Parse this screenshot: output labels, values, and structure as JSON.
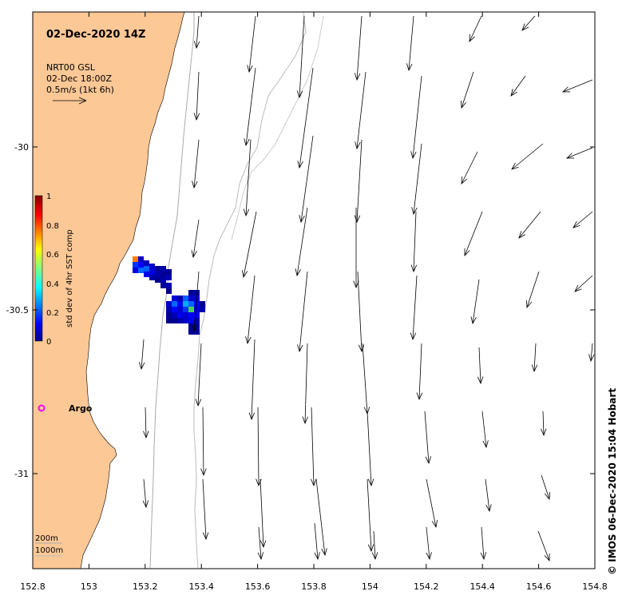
{
  "title": "02-Dec-2020 14Z",
  "current_info": {
    "line1": "NRT00 GSL",
    "line2": "02-Dec 18:00Z",
    "line3": "0.5m/s (1kt 6h)"
  },
  "colorbar": {
    "label": "std dev of 4hr SST comp",
    "ticks": [
      "1",
      "0.8",
      "0.6",
      "0.4",
      "0.2",
      "0"
    ],
    "range": [
      0,
      1
    ]
  },
  "argo_label": "Argo",
  "depth_legend": {
    "line1": "200m",
    "line2": "1000m"
  },
  "credit": "©  IMOS 06-Dec-2020 15:04 Hobart",
  "x_axis": {
    "ticks": [
      "152.8",
      "153",
      "153.2",
      "153.4",
      "153.6",
      "153.8",
      "154",
      "154.2",
      "154.4",
      "154.6",
      "154.8"
    ]
  },
  "y_axis": {
    "ticks": [
      "-30",
      "-30.5",
      "-31"
    ]
  },
  "colors": {
    "land": "#fcc896",
    "argo": "#ff00ff",
    "isobath": "#aaaaaa"
  }
}
